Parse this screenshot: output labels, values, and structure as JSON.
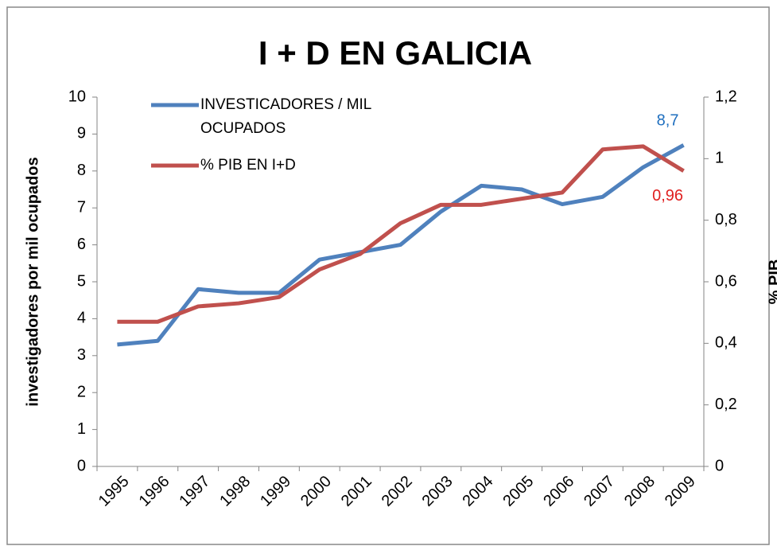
{
  "chart_data": {
    "type": "line",
    "title": "I + D EN GALICIA",
    "y_label": "investigadores por mil ocupados",
    "y2_label": "% PIB",
    "categories": [
      "1995",
      "1996",
      "1997",
      "1998",
      "1999",
      "2000",
      "2001",
      "2002",
      "2003",
      "2004",
      "2005",
      "2006",
      "2007",
      "2008",
      "2009"
    ],
    "series": [
      {
        "name": "INVESTICADORES  / MIL OCUPADOS",
        "color": "#4f81bd",
        "axis": "y",
        "values": [
          3.3,
          3.4,
          4.8,
          4.7,
          4.7,
          5.6,
          5.8,
          6.0,
          6.9,
          7.6,
          7.5,
          7.1,
          7.3,
          8.1,
          8.7
        ],
        "value_labels": [
          null,
          null,
          null,
          null,
          null,
          null,
          null,
          null,
          null,
          null,
          null,
          null,
          null,
          null,
          "8,7"
        ],
        "label_color": "#1f6fbf"
      },
      {
        "name": "% PIB EN I+D",
        "color": "#c0504d",
        "axis": "y2",
        "values": [
          0.47,
          0.47,
          0.52,
          0.53,
          0.55,
          0.64,
          0.69,
          0.79,
          0.85,
          0.85,
          0.87,
          0.89,
          1.03,
          1.04,
          0.96
        ],
        "value_labels": [
          null,
          null,
          null,
          null,
          null,
          null,
          null,
          null,
          null,
          null,
          null,
          null,
          null,
          null,
          "0,96"
        ],
        "label_color": "#e02020"
      }
    ],
    "ylim": [
      0,
      10
    ],
    "yticks": [
      0,
      1,
      2,
      3,
      4,
      5,
      6,
      7,
      8,
      9,
      10
    ],
    "y2lim": [
      0,
      1.2
    ],
    "y2ticks": [
      0,
      {
        "value": 0.2,
        "label": "0,2"
      },
      {
        "value": 0.4,
        "label": "0,4"
      },
      {
        "value": 0.6,
        "label": "0,6"
      },
      {
        "value": 0.8,
        "label": "0,8"
      },
      1,
      {
        "value": 1.2,
        "label": "1,2"
      }
    ],
    "legend": "top-left",
    "grid": false
  }
}
